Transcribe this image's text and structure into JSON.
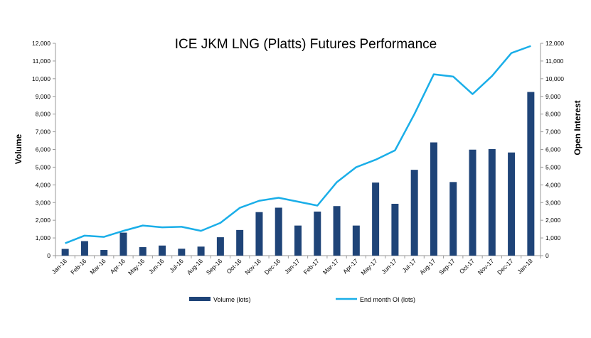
{
  "chart_data": {
    "type": "bar+line",
    "title": "ICE JKM LNG (Platts) Futures Performance",
    "ylabel_left": "Volume",
    "ylabel_right": "Open Interest",
    "ylim_left": [
      0,
      12000
    ],
    "ylim_right": [
      0,
      12000
    ],
    "yticks": [
      "0",
      "1,000",
      "2,000",
      "3,000",
      "4,000",
      "5,000",
      "6,000",
      "7,000",
      "8,000",
      "9,000",
      "10,000",
      "11,000",
      "12,000"
    ],
    "categories": [
      "Jan-16",
      "Feb-16",
      "Mar-16",
      "Apr-16",
      "May-16",
      "Jun-16",
      "Jul-16",
      "Aug-16",
      "Sep-16",
      "Oct-16",
      "Nov-16",
      "Dec-16",
      "Jan-17",
      "Feb-17",
      "Mar-17",
      "Apr-17",
      "May-17",
      "Jun-17",
      "Jul-17",
      "Aug-17",
      "Sep-17",
      "Oct-17",
      "Nov-17",
      "Dec-17",
      "Jan-18"
    ],
    "series": [
      {
        "name": "Volume (lots)",
        "type": "bar",
        "axis": "left",
        "color": "#1f4478",
        "values": [
          380,
          820,
          320,
          1300,
          480,
          570,
          390,
          510,
          1040,
          1450,
          2460,
          2710,
          1700,
          2490,
          2800,
          1700,
          4130,
          2930,
          4850,
          6400,
          4160,
          5990,
          6020,
          5830,
          9250
        ]
      },
      {
        "name": "End month OI (lots)",
        "type": "line",
        "axis": "right",
        "color": "#1aaee8",
        "values": [
          700,
          1130,
          1060,
          1400,
          1700,
          1600,
          1630,
          1400,
          1850,
          2700,
          3100,
          3270,
          3050,
          2830,
          4150,
          5000,
          5420,
          5950,
          8000,
          10250,
          10120,
          9130,
          10150,
          11450,
          11850
        ]
      }
    ],
    "grid": false,
    "legend": "bottom"
  }
}
